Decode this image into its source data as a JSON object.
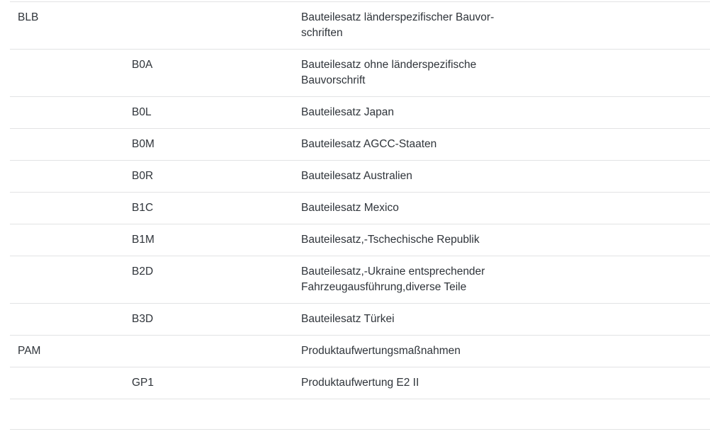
{
  "colors": {
    "text": "#2f343a",
    "divider": "#e2e3e4",
    "background": "#ffffff"
  },
  "table": {
    "columns": [
      "group_code",
      "sub_code",
      "description"
    ],
    "rows": [
      {
        "group_code": "BLB",
        "sub_code": "",
        "description": "Bauteilesatz länderspezifischer Bauvor-\nschriften",
        "empty": false
      },
      {
        "group_code": "",
        "sub_code": "B0A",
        "description": "Bauteilesatz ohne länderspezifische\nBauvorschrift",
        "empty": false
      },
      {
        "group_code": "",
        "sub_code": "B0L",
        "description": "Bauteilesatz Japan",
        "empty": false
      },
      {
        "group_code": "",
        "sub_code": "B0M",
        "description": "Bauteilesatz AGCC-Staaten",
        "empty": false
      },
      {
        "group_code": "",
        "sub_code": "B0R",
        "description": "Bauteilesatz Australien",
        "empty": false
      },
      {
        "group_code": "",
        "sub_code": "B1C",
        "description": "Bauteilesatz Mexico",
        "empty": false
      },
      {
        "group_code": "",
        "sub_code": "B1M",
        "description": "Bauteilesatz,-Tschechische Republik",
        "empty": false
      },
      {
        "group_code": "",
        "sub_code": "B2D",
        "description": "Bauteilesatz,-Ukraine entsprechender\nFahrzeugausführung,diverse Teile",
        "empty": false
      },
      {
        "group_code": "",
        "sub_code": "B3D",
        "description": "Bauteilesatz Türkei",
        "empty": false
      },
      {
        "group_code": "PAM",
        "sub_code": "",
        "description": "Produktaufwertungsmaßnahmen",
        "empty": false
      },
      {
        "group_code": "",
        "sub_code": "GP1",
        "description": "Produktaufwertung E2 II",
        "empty": false
      },
      {
        "group_code": "",
        "sub_code": "",
        "description": "",
        "empty": true
      }
    ]
  }
}
